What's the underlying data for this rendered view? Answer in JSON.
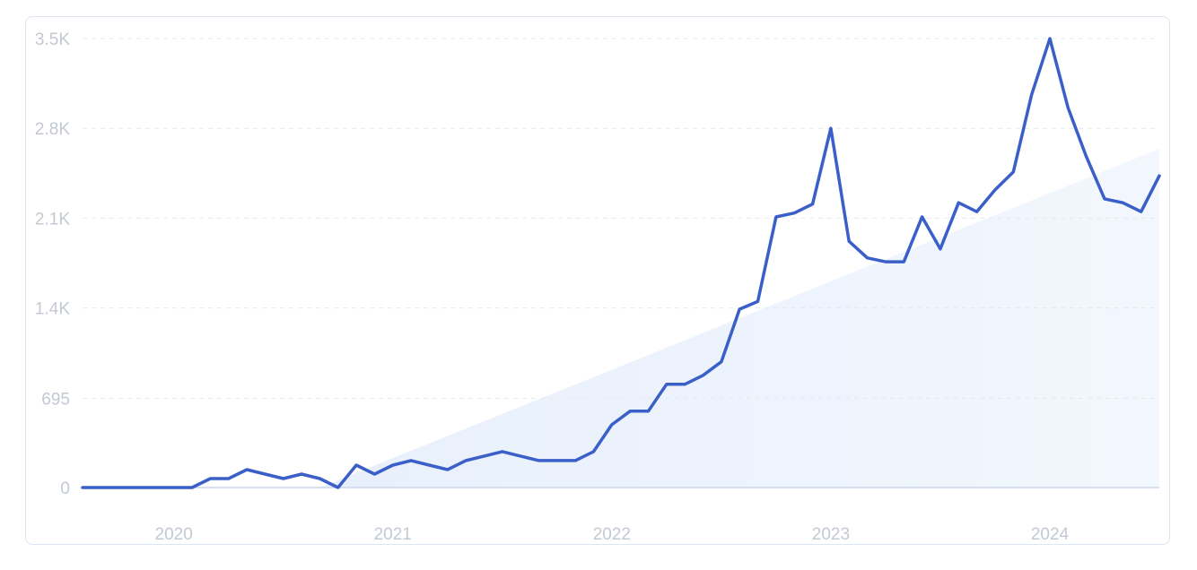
{
  "chart_data": {
    "type": "line",
    "title": "",
    "xlabel": "",
    "ylabel": "",
    "ylim": [
      0,
      3500
    ],
    "xlim": [
      "2019-08",
      "2024-07"
    ],
    "grid": true,
    "y_ticks": [
      {
        "value": 0,
        "label": "0"
      },
      {
        "value": 695,
        "label": "695"
      },
      {
        "value": 1400,
        "label": "1.4K"
      },
      {
        "value": 2100,
        "label": "2.1K"
      },
      {
        "value": 2800,
        "label": "2.8K"
      },
      {
        "value": 3500,
        "label": "3.5K"
      }
    ],
    "x_ticks": [
      {
        "value": "2020-01",
        "label": "2020"
      },
      {
        "value": "2021-01",
        "label": "2021"
      },
      {
        "value": "2022-01",
        "label": "2022"
      },
      {
        "value": "2023-01",
        "label": "2023"
      },
      {
        "value": "2024-01",
        "label": "2024"
      }
    ],
    "colors": {
      "line": "#3b5fc8",
      "trend_fill": "#e8f0fc"
    },
    "trend": {
      "x": [
        "2020-09",
        "2024-07"
      ],
      "y": [
        0,
        2640
      ]
    },
    "series": [
      {
        "x": [
          "2019-08",
          "2019-09",
          "2019-10",
          "2019-11",
          "2019-12",
          "2020-01",
          "2020-02",
          "2020-03",
          "2020-04",
          "2020-05",
          "2020-06",
          "2020-07",
          "2020-08",
          "2020-09",
          "2020-10",
          "2020-11",
          "2020-12",
          "2021-01",
          "2021-02",
          "2021-03",
          "2021-04",
          "2021-05",
          "2021-06",
          "2021-07",
          "2021-08",
          "2021-09",
          "2021-10",
          "2021-11",
          "2021-12",
          "2022-01",
          "2022-02",
          "2022-03",
          "2022-04",
          "2022-05",
          "2022-06",
          "2022-07",
          "2022-08",
          "2022-09",
          "2022-10",
          "2022-11",
          "2022-12",
          "2023-01",
          "2023-02",
          "2023-03",
          "2023-04",
          "2023-05",
          "2023-06",
          "2023-07",
          "2023-08",
          "2023-09",
          "2023-10",
          "2023-11",
          "2023-12",
          "2024-01",
          "2024-02",
          "2024-03",
          "2024-04",
          "2024-05",
          "2024-06",
          "2024-07"
        ],
        "y": [
          0,
          0,
          0,
          0,
          0,
          0,
          0,
          70,
          70,
          140,
          105,
          70,
          105,
          70,
          0,
          175,
          105,
          175,
          210,
          175,
          140,
          210,
          245,
          280,
          245,
          210,
          210,
          210,
          280,
          490,
          595,
          595,
          805,
          805,
          875,
          980,
          1390,
          1450,
          2110,
          2140,
          2210,
          2800,
          1920,
          1790,
          1760,
          1760,
          2110,
          1860,
          2220,
          2150,
          2320,
          2460,
          3060,
          3500,
          2960,
          2580,
          2250,
          2220,
          2150,
          2430
        ]
      }
    ]
  }
}
